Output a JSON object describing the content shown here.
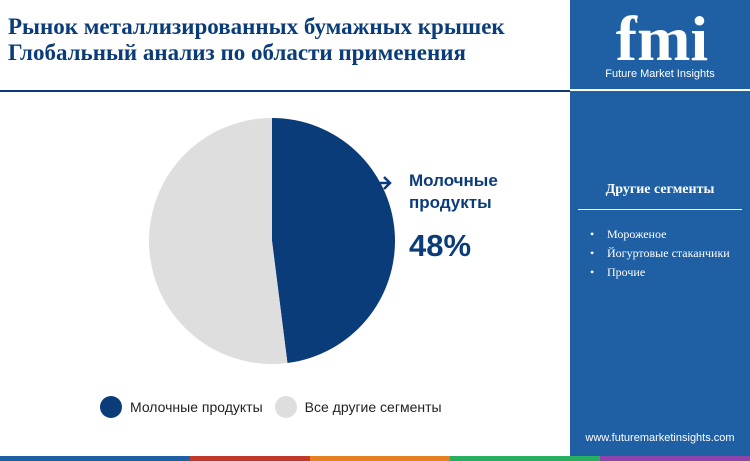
{
  "header": {
    "title_line1": "Рынок металлизированных бумажных крышек",
    "title_line2": "Глобальный анализ по области применения"
  },
  "chart_data": {
    "type": "pie",
    "categories": [
      "Молочные продукты",
      "Все другие сегменты"
    ],
    "values": [
      48,
      52
    ],
    "colors": [
      "#0b3c7a",
      "#dedede"
    ],
    "callout": {
      "label_line1": "Молочные",
      "label_line2": "продукты",
      "value": "48%"
    }
  },
  "legend": [
    {
      "label": "Молочные продукты",
      "color": "#0b3c7a"
    },
    {
      "label": "Все другие сегменты",
      "color": "#dedede"
    }
  ],
  "sidebar": {
    "logo_text": "fmi",
    "company": "Future Market Insights",
    "segments_title": "Другие сегменты",
    "segments": [
      "Мороженое",
      "Йогуртовые стаканчики",
      "Прочие"
    ],
    "website": "www.futuremarketinsights.com",
    "bg_color": "#1f5fa3"
  },
  "bottom_bar_colors": [
    "#1f5fa3",
    "#c0392b",
    "#e67e22",
    "#27ae60",
    "#8e44ad"
  ]
}
